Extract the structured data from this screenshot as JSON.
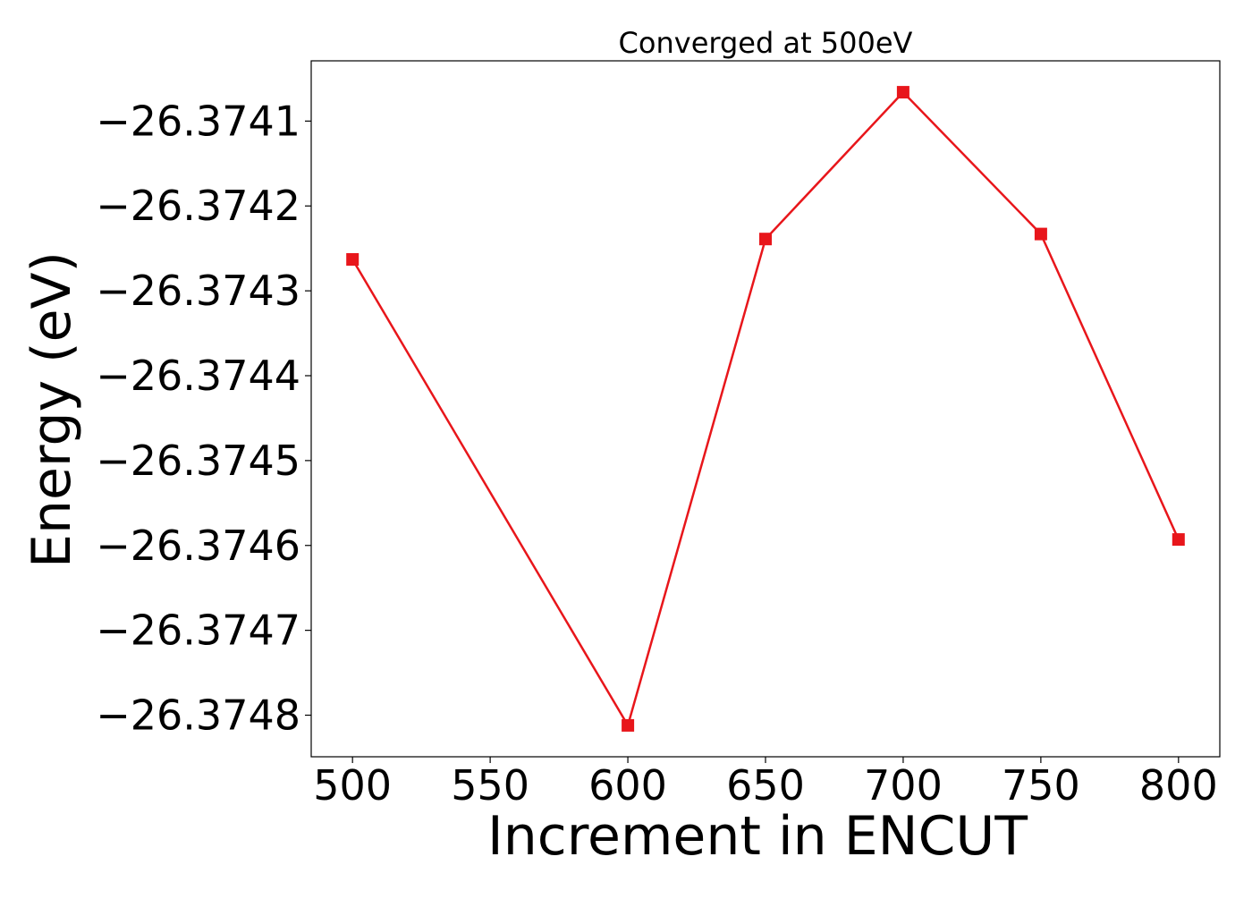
{
  "chart_data": {
    "type": "line",
    "title": "Converged at 500eV",
    "xlabel": "Increment in ENCUT",
    "ylabel": "Energy (eV)",
    "x": [
      500,
      600,
      650,
      700,
      750,
      800
    ],
    "series": [
      {
        "values": [
          -26.374263,
          -26.374812,
          -26.374239,
          -26.374066,
          -26.374233,
          -26.374593
        ],
        "color": "#e8161b",
        "marker": "square"
      }
    ],
    "xlim": [
      485,
      815
    ],
    "ylim": [
      -26.374849,
      -26.374029
    ],
    "xticks": [
      500,
      550,
      600,
      650,
      700,
      750,
      800
    ],
    "xtick_labels": [
      "500",
      "550",
      "600",
      "650",
      "700",
      "750",
      "800"
    ],
    "yticks": [
      -26.3748,
      -26.3747,
      -26.3746,
      -26.3745,
      -26.3744,
      -26.3743,
      -26.3742,
      -26.3741
    ],
    "ytick_labels": [
      "−26.3748",
      "−26.3747",
      "−26.3746",
      "−26.3745",
      "−26.3744",
      "−26.3743",
      "−26.3742",
      "−26.3741"
    ],
    "grid": false,
    "legend": "none"
  }
}
